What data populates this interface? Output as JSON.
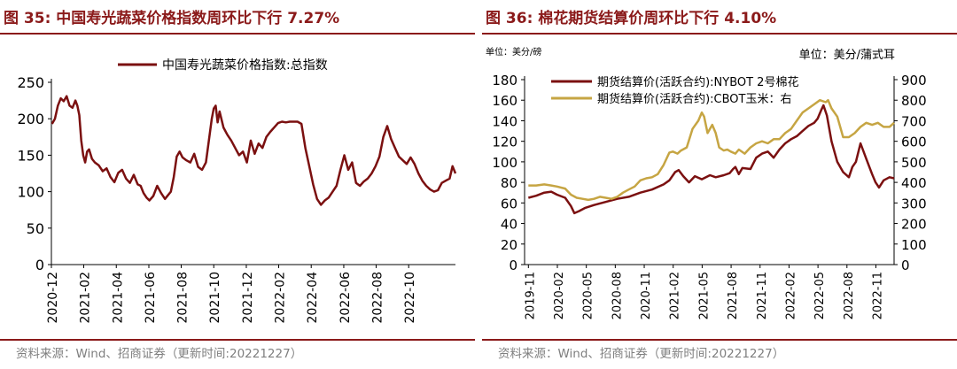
{
  "panels": [
    {
      "title": "图 35:  中国寿光蔬菜价格指数周环比下行 7.27%",
      "source": "资料来源：Wind、招商证券（更新时间:20221227）"
    },
    {
      "title": "图 36:  棉花期货结算价周环比下行 4.10%",
      "source": "资料来源：Wind、招商证券（更新时间:20221227）"
    }
  ],
  "colors": {
    "dark_red": "#7B1010",
    "gold": "#C6A543",
    "title_red": "#8B1A1A",
    "source_gray": "#7f7f7f"
  },
  "chart_data": [
    {
      "type": "line",
      "title": "",
      "legend": "中国寿光蔬菜价格指数:总指数",
      "legend_position": "top-center",
      "x_range": [
        2020.917,
        2022.99
      ],
      "ylim": [
        0,
        250
      ],
      "yticks": [
        "0",
        "50",
        "100",
        "150",
        "200",
        "250"
      ],
      "ytick_values": [
        0,
        50,
        100,
        150,
        200,
        250
      ],
      "xticks": [
        "2020-12",
        "2021-02",
        "2021-04",
        "2021-06",
        "2021-08",
        "2021-10",
        "2021-12",
        "2022-02",
        "2022-04",
        "2022-06",
        "2022-08",
        "2022-10"
      ],
      "xtick_values": [
        2020.917,
        2021.083,
        2021.25,
        2021.417,
        2021.583,
        2021.75,
        2021.917,
        2022.083,
        2022.25,
        2022.417,
        2022.583,
        2022.75
      ],
      "series": [
        {
          "name": "中国寿光蔬菜价格指数:总指数",
          "color": "#7B1010",
          "x": [
            2020.92,
            2020.935,
            2020.95,
            2020.965,
            2020.98,
            2020.995,
            2021.01,
            2021.025,
            2021.04,
            2021.05,
            2021.06,
            2021.07,
            2021.08,
            2021.09,
            2021.1,
            2021.11,
            2021.125,
            2021.14,
            2021.16,
            2021.18,
            2021.2,
            2021.22,
            2021.24,
            2021.26,
            2021.28,
            2021.3,
            2021.32,
            2021.34,
            2021.36,
            2021.375,
            2021.39,
            2021.405,
            2021.42,
            2021.44,
            2021.46,
            2021.48,
            2021.5,
            2021.515,
            2021.53,
            2021.545,
            2021.56,
            2021.575,
            2021.59,
            2021.61,
            2021.63,
            2021.65,
            2021.67,
            2021.69,
            2021.71,
            2021.725,
            2021.74,
            2021.75,
            2021.76,
            2021.77,
            2021.78,
            2021.8,
            2021.82,
            2021.84,
            2021.86,
            2021.88,
            2021.9,
            2021.92,
            2021.94,
            2021.96,
            2021.98,
            2022.0,
            2022.02,
            2022.04,
            2022.06,
            2022.08,
            2022.1,
            2022.12,
            2022.14,
            2022.16,
            2022.18,
            2022.2,
            2022.22,
            2022.24,
            2022.26,
            2022.28,
            2022.3,
            2022.32,
            2022.34,
            2022.36,
            2022.38,
            2022.4,
            2022.42,
            2022.44,
            2022.46,
            2022.48,
            2022.5,
            2022.52,
            2022.54,
            2022.56,
            2022.58,
            2022.6,
            2022.62,
            2022.64,
            2022.66,
            2022.68,
            2022.7,
            2022.72,
            2022.74,
            2022.76,
            2022.78,
            2022.8,
            2022.82,
            2022.84,
            2022.86,
            2022.88,
            2022.9,
            2022.92,
            2022.94,
            2022.96,
            2022.975,
            2022.99
          ],
          "y": [
            193,
            200,
            218,
            228,
            224,
            231,
            218,
            215,
            225,
            218,
            205,
            170,
            150,
            140,
            155,
            158,
            145,
            140,
            136,
            128,
            132,
            120,
            113,
            126,
            130,
            118,
            112,
            123,
            110,
            108,
            98,
            92,
            88,
            94,
            108,
            98,
            90,
            95,
            100,
            120,
            148,
            155,
            147,
            143,
            140,
            152,
            134,
            130,
            140,
            170,
            200,
            214,
            218,
            195,
            210,
            188,
            178,
            170,
            160,
            150,
            155,
            140,
            170,
            152,
            166,
            160,
            175,
            182,
            188,
            194,
            196,
            195,
            196,
            196,
            196,
            193,
            160,
            135,
            110,
            90,
            82,
            88,
            92,
            100,
            108,
            130,
            150,
            130,
            140,
            112,
            108,
            114,
            118,
            125,
            135,
            148,
            175,
            190,
            172,
            160,
            148,
            143,
            138,
            147,
            138,
            125,
            115,
            108,
            103,
            100,
            102,
            112,
            115,
            118,
            135,
            125
          ]
        }
      ]
    },
    {
      "type": "line",
      "title": "",
      "unit_left": "单位：美分/磅",
      "unit_right": "单位：美分/蒲式耳",
      "legend_position": "top-center",
      "x_range": [
        2019.8,
        2022.99
      ],
      "ylim": [
        0,
        180
      ],
      "ylim_right": [
        0,
        900
      ],
      "yticks": [
        "0",
        "20",
        "40",
        "60",
        "80",
        "100",
        "120",
        "140",
        "160",
        "180"
      ],
      "ytick_values": [
        0,
        20,
        40,
        60,
        80,
        100,
        120,
        140,
        160,
        180
      ],
      "yticks_right": [
        "0",
        "100",
        "200",
        "300",
        "400",
        "500",
        "600",
        "700",
        "800",
        "900"
      ],
      "ytick_values_right": [
        0,
        100,
        200,
        300,
        400,
        500,
        600,
        700,
        800,
        900
      ],
      "xticks": [
        "2019-11",
        "2020-02",
        "2020-05",
        "2020-08",
        "2020-11",
        "2021-02",
        "2021-05",
        "2021-08",
        "2021-11",
        "2022-02",
        "2022-05",
        "2022-08",
        "2022-11"
      ],
      "xtick_values": [
        2019.833,
        2020.083,
        2020.333,
        2020.583,
        2020.833,
        2021.083,
        2021.333,
        2021.583,
        2021.833,
        2022.083,
        2022.333,
        2022.583,
        2022.833
      ],
      "series": [
        {
          "name": "期货结算价(活跃合约):NYBOT 2号棉花",
          "axis": "left",
          "color": "#7B1010",
          "x": [
            2019.833,
            2019.9,
            2019.97,
            2020.03,
            2020.08,
            2020.15,
            2020.2,
            2020.23,
            2020.27,
            2020.32,
            2020.4,
            2020.5,
            2020.6,
            2020.7,
            2020.8,
            2020.9,
            2021.0,
            2021.05,
            2021.1,
            2021.13,
            2021.17,
            2021.22,
            2021.27,
            2021.33,
            2021.4,
            2021.45,
            2021.52,
            2021.57,
            2021.6,
            2021.62,
            2021.65,
            2021.68,
            2021.75,
            2021.8,
            2021.85,
            2021.9,
            2021.95,
            2022.0,
            2022.05,
            2022.1,
            2022.15,
            2022.2,
            2022.25,
            2022.3,
            2022.33,
            2022.36,
            2022.38,
            2022.41,
            2022.45,
            2022.5,
            2022.55,
            2022.6,
            2022.63,
            2022.66,
            2022.7,
            2022.75,
            2022.8,
            2022.83,
            2022.86,
            2022.9,
            2022.95,
            2022.99
          ],
          "y": [
            65,
            67,
            70,
            71,
            68,
            65,
            57,
            50,
            52,
            55,
            58,
            61,
            64,
            66,
            70,
            73,
            78,
            82,
            90,
            92,
            86,
            80,
            86,
            83,
            87,
            85,
            87,
            89,
            93,
            95,
            88,
            94,
            93,
            104,
            108,
            110,
            104,
            112,
            118,
            122,
            125,
            130,
            135,
            138,
            142,
            150,
            155,
            145,
            120,
            100,
            90,
            85,
            95,
            100,
            118,
            103,
            88,
            80,
            75,
            82,
            85,
            84
          ]
        },
        {
          "name": "期货结算价(活跃合约):CBOT玉米：右",
          "axis": "right",
          "color": "#C6A543",
          "x": [
            2019.833,
            2019.9,
            2019.97,
            2020.03,
            2020.08,
            2020.15,
            2020.2,
            2020.25,
            2020.3,
            2020.35,
            2020.4,
            2020.45,
            2020.5,
            2020.55,
            2020.6,
            2020.65,
            2020.7,
            2020.75,
            2020.8,
            2020.85,
            2020.9,
            2020.95,
            2021.0,
            2021.05,
            2021.08,
            2021.12,
            2021.15,
            2021.2,
            2021.25,
            2021.3,
            2021.33,
            2021.35,
            2021.38,
            2021.42,
            2021.45,
            2021.48,
            2021.52,
            2021.55,
            2021.58,
            2021.62,
            2021.65,
            2021.7,
            2021.75,
            2021.8,
            2021.85,
            2021.9,
            2021.95,
            2022.0,
            2022.05,
            2022.1,
            2022.15,
            2022.2,
            2022.25,
            2022.3,
            2022.35,
            2022.4,
            2022.42,
            2022.45,
            2022.5,
            2022.55,
            2022.6,
            2022.65,
            2022.7,
            2022.75,
            2022.8,
            2022.85,
            2022.9,
            2022.95,
            2022.99
          ],
          "y": [
            385,
            385,
            390,
            385,
            380,
            370,
            340,
            325,
            320,
            315,
            320,
            330,
            325,
            320,
            330,
            350,
            365,
            380,
            410,
            420,
            425,
            440,
            485,
            545,
            550,
            540,
            555,
            570,
            660,
            700,
            740,
            720,
            640,
            680,
            640,
            570,
            555,
            560,
            550,
            540,
            560,
            540,
            570,
            590,
            600,
            590,
            610,
            610,
            640,
            660,
            700,
            740,
            760,
            780,
            800,
            790,
            800,
            760,
            720,
            620,
            620,
            640,
            670,
            690,
            680,
            690,
            670,
            670,
            690
          ]
        }
      ]
    }
  ]
}
